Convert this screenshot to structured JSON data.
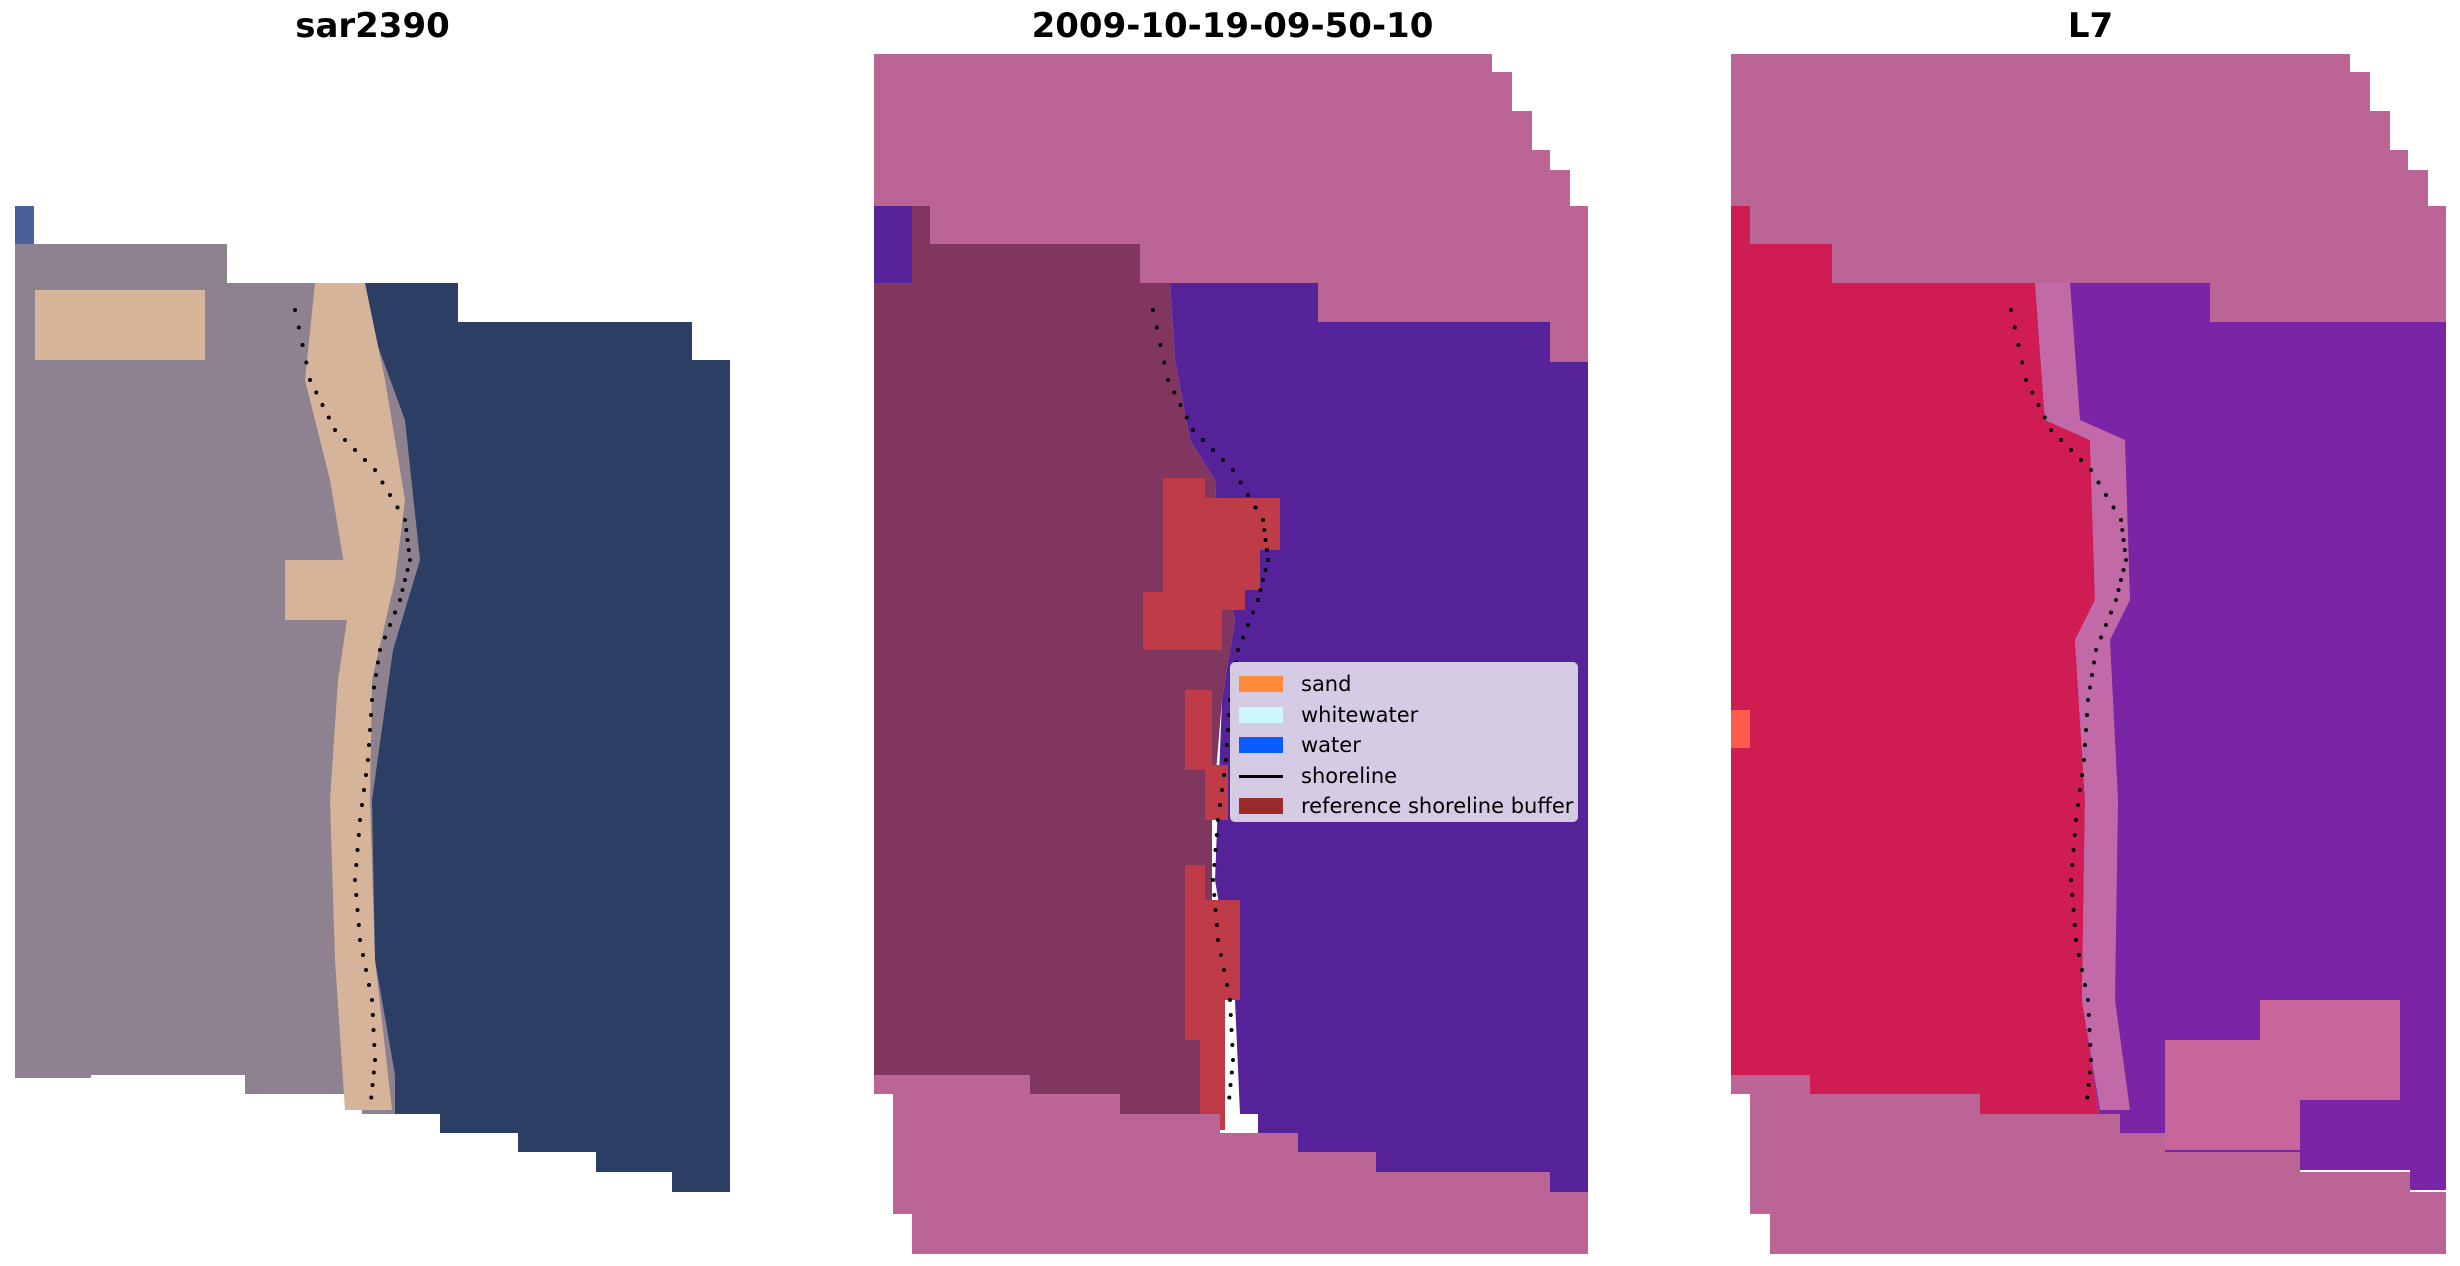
{
  "panels": [
    {
      "title": "sar2390"
    },
    {
      "title": "2009-10-19-09-50-10"
    },
    {
      "title": "L7"
    }
  ],
  "legend": {
    "items": [
      {
        "label": "sand",
        "color": "#ff8c3c",
        "kind": "patch"
      },
      {
        "label": "whitewater",
        "color": "#ccf7ff",
        "kind": "patch"
      },
      {
        "label": "water",
        "color": "#0a5cff",
        "kind": "patch"
      },
      {
        "label": "shoreline",
        "color": "#000000",
        "kind": "line"
      },
      {
        "label": "reference shoreline buffer",
        "color": "#9a2b2b",
        "kind": "patch"
      }
    ]
  },
  "colors": {
    "rgb_land": "#8f8290",
    "rgb_sand": "#d6b49a",
    "rgb_water": "#2c3e63",
    "class_land": "#80365f",
    "class_water": "#55229a",
    "class_buffer": "#c03b48",
    "class_nodata": "#bb6596",
    "ndwi_land": "#cf1c52",
    "ndwi_water": "#7a24a6",
    "ndwi_nodata": "#bb6596"
  }
}
